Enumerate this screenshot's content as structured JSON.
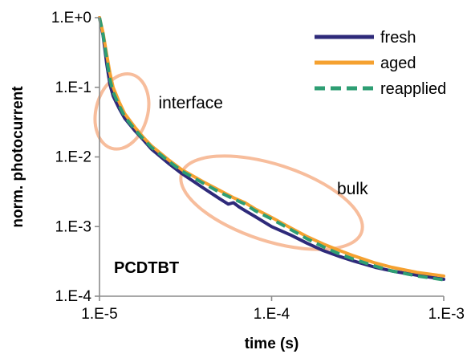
{
  "chart_data": {
    "type": "line",
    "xlabel": "time (s)",
    "ylabel": "norm. photocurrent",
    "x_scale": "log",
    "y_scale": "log",
    "xlim": [
      1e-05,
      0.001
    ],
    "ylim": [
      0.0001,
      1
    ],
    "x_ticks": [
      {
        "value": 1e-05,
        "label": "1.E-5"
      },
      {
        "value": 0.0001,
        "label": "1.E-4"
      },
      {
        "value": 0.001,
        "label": "1.E-3"
      }
    ],
    "y_ticks": [
      {
        "value": 1,
        "label": "1.E+0"
      },
      {
        "value": 0.1,
        "label": "1.E-1"
      },
      {
        "value": 0.01,
        "label": "1.E-2"
      },
      {
        "value": 0.001,
        "label": "1.E-3"
      },
      {
        "value": 0.0001,
        "label": "1.E-4"
      }
    ],
    "grid": false,
    "legend_position": "top-right",
    "material_label": "PCDTBT",
    "series": [
      {
        "name": "fresh",
        "color": "#2e2a7a",
        "dash": "solid",
        "x": [
          1e-05,
          1.05e-05,
          1.1e-05,
          1.15e-05,
          1.2e-05,
          1.3e-05,
          1.4e-05,
          1.6e-05,
          1.8e-05,
          2e-05,
          2.5e-05,
          3e-05,
          4e-05,
          5e-05,
          5.6e-05,
          6e-05,
          6.5e-05,
          7e-05,
          8e-05,
          0.0001,
          0.00013,
          0.00016,
          0.0002,
          0.00025,
          0.0003,
          0.0004,
          0.0005,
          0.0007,
          0.001
        ],
        "y": [
          1.0,
          0.55,
          0.22,
          0.11,
          0.075,
          0.05,
          0.036,
          0.024,
          0.0175,
          0.013,
          0.0082,
          0.0058,
          0.0036,
          0.0025,
          0.0021,
          0.0022,
          0.0019,
          0.0017,
          0.0014,
          0.001,
          0.00075,
          0.00058,
          0.00045,
          0.00037,
          0.00032,
          0.00026,
          0.00023,
          0.0002,
          0.000175
        ]
      },
      {
        "name": "aged",
        "color": "#f5a130",
        "dash": "solid",
        "x": [
          1e-05,
          1.05e-05,
          1.1e-05,
          1.15e-05,
          1.2e-05,
          1.3e-05,
          1.4e-05,
          1.6e-05,
          1.8e-05,
          2e-05,
          2.5e-05,
          3e-05,
          4e-05,
          5e-05,
          6e-05,
          7e-05,
          8e-05,
          0.0001,
          0.00013,
          0.00016,
          0.0002,
          0.00025,
          0.0003,
          0.0004,
          0.0005,
          0.0007,
          0.001
        ],
        "y": [
          1.0,
          0.6,
          0.3,
          0.16,
          0.1,
          0.062,
          0.042,
          0.027,
          0.019,
          0.0145,
          0.0092,
          0.0066,
          0.0044,
          0.0033,
          0.0026,
          0.0022,
          0.0018,
          0.00135,
          0.00095,
          0.00072,
          0.00056,
          0.00045,
          0.00038,
          0.0003,
          0.00026,
          0.00022,
          0.000195
        ]
      },
      {
        "name": "reapplied",
        "color": "#2e9e73",
        "dash": "dashed",
        "x": [
          1e-05,
          1.05e-05,
          1.1e-05,
          1.15e-05,
          1.2e-05,
          1.3e-05,
          1.4e-05,
          1.6e-05,
          1.8e-05,
          2e-05,
          2.5e-05,
          3e-05,
          4e-05,
          5e-05,
          6e-05,
          7e-05,
          8e-05,
          0.0001,
          0.00013,
          0.00016,
          0.0002,
          0.00025,
          0.0003,
          0.0004,
          0.0005,
          0.0007,
          0.001
        ],
        "y": [
          1.0,
          0.57,
          0.26,
          0.13,
          0.085,
          0.055,
          0.038,
          0.025,
          0.018,
          0.0138,
          0.0088,
          0.0063,
          0.0042,
          0.0031,
          0.0025,
          0.0021,
          0.0017,
          0.00128,
          0.0009,
          0.00067,
          0.00051,
          0.0004,
          0.00034,
          0.00027,
          0.00023,
          0.000195,
          0.000172
        ]
      }
    ],
    "annotations": [
      {
        "text": "interface",
        "x": 2.2e-05,
        "y": 0.06
      },
      {
        "text": "bulk",
        "x": 0.00024,
        "y": 0.0035
      }
    ],
    "highlight_ellipses": [
      {
        "region": "interface",
        "cx": 1.35e-05,
        "cy": 0.045,
        "x_span_decades": 0.3,
        "y_span_decades": 1.1,
        "rotation_deg": 15,
        "color": "#f7bd9c"
      },
      {
        "region": "bulk",
        "cx": 0.0001,
        "cy": 0.0022,
        "x_span_decades": 1.1,
        "y_span_decades": 1.1,
        "rotation_deg": 18,
        "color": "#f7bd9c"
      }
    ]
  }
}
